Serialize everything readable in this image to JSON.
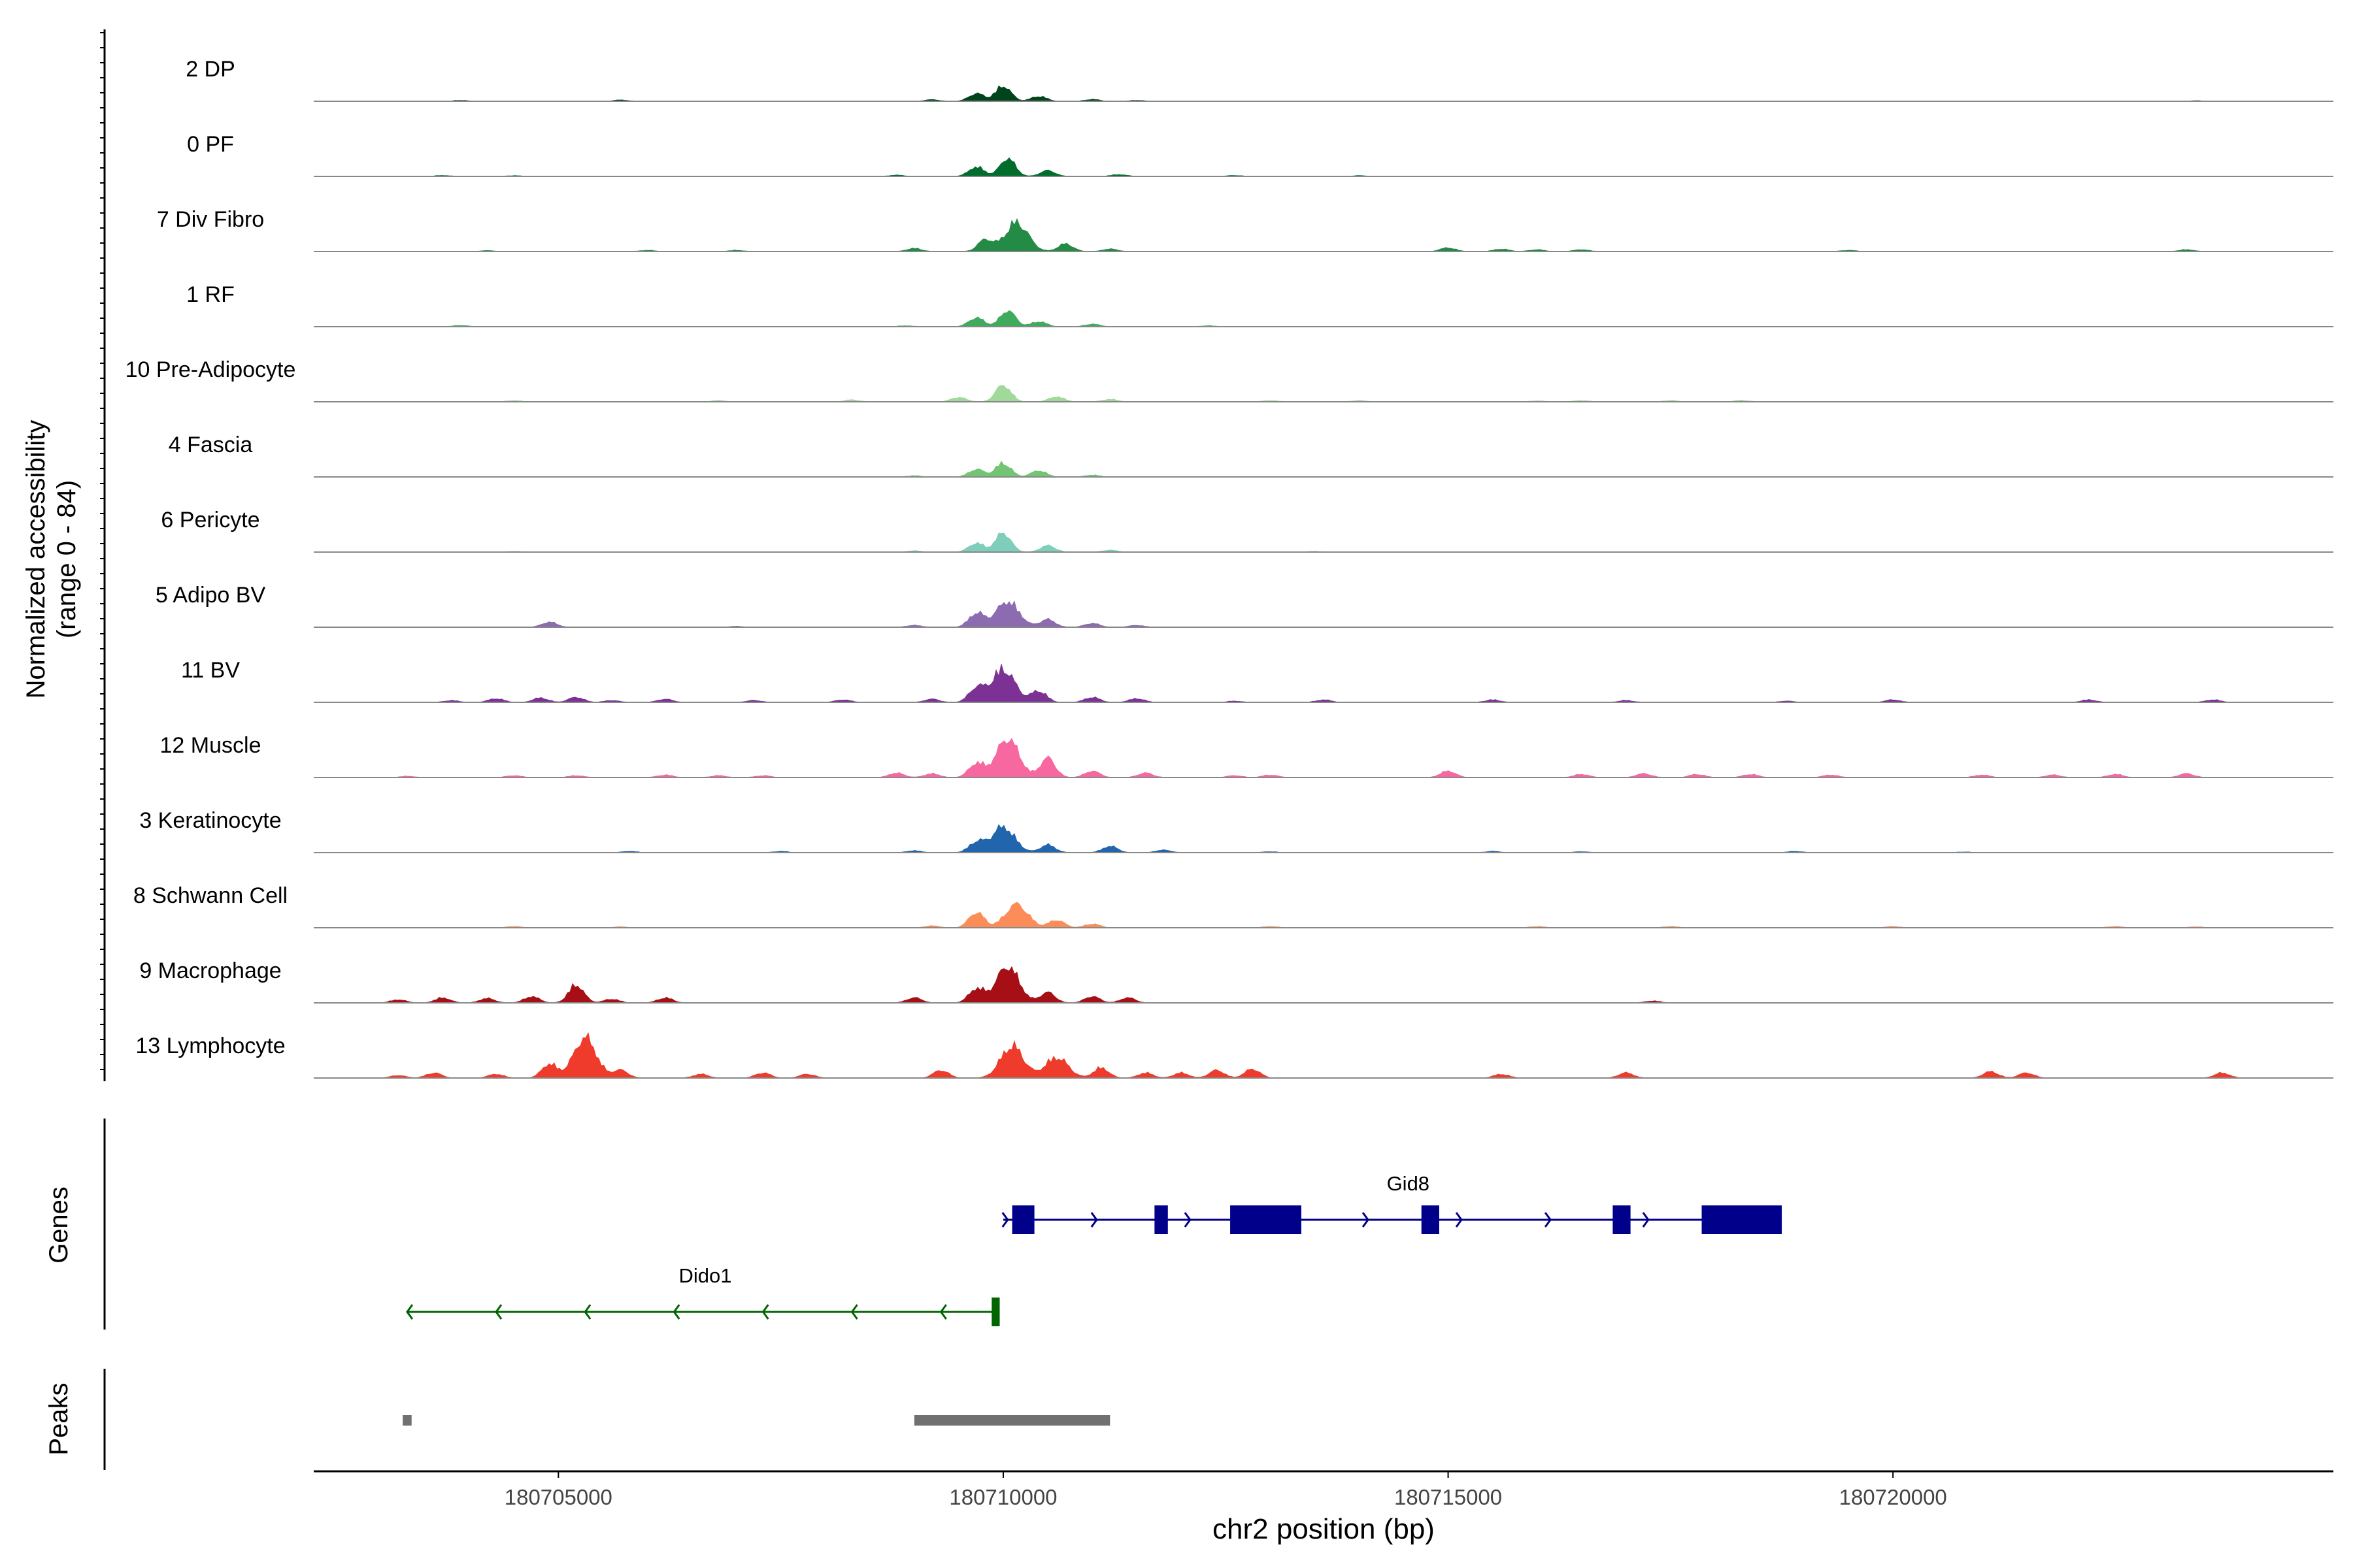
{
  "chart_data": {
    "type": "area",
    "title": "",
    "ylabel_line1": "Normalized accessibility",
    "ylabel_line2": "(range 0 - 84)",
    "y_range": [
      0,
      84
    ],
    "xlabel": "chr2 position (bp)",
    "xlim": [
      180702250,
      180724950
    ],
    "x_ticks": [
      180705000,
      180710000,
      180715000,
      180720000
    ],
    "x_tick_labels": [
      "180705000",
      "180710000",
      "180715000",
      "180720000"
    ],
    "tracks": [
      {
        "label": "2 DP",
        "color": "#00441b",
        "peaks": [
          [
            180710000,
            24
          ],
          [
            180709700,
            12
          ],
          [
            180710400,
            8
          ],
          [
            180711000,
            3
          ],
          [
            180705700,
            2
          ],
          [
            180703900,
            1.5
          ],
          [
            180709200,
            2.5
          ],
          [
            180711500,
            1.5
          ],
          [
            180723400,
            1
          ]
        ]
      },
      {
        "label": "0 PF",
        "color": "#006d2c",
        "peaks": [
          [
            180710050,
            28
          ],
          [
            180709700,
            15
          ],
          [
            180710500,
            9
          ],
          [
            180711300,
            3
          ],
          [
            180708800,
            2
          ],
          [
            180703700,
            1.5
          ],
          [
            180704500,
            1.2
          ],
          [
            180712600,
            1.5
          ],
          [
            180714000,
            1.2
          ]
        ]
      },
      {
        "label": "7 Div Fibro",
        "color": "#238b45",
        "peaks": [
          [
            180710150,
            45
          ],
          [
            180709800,
            18
          ],
          [
            180710700,
            12
          ],
          [
            180711200,
            4
          ],
          [
            180709000,
            5
          ],
          [
            180715000,
            6
          ],
          [
            180715600,
            4
          ],
          [
            180716000,
            3
          ],
          [
            180716500,
            3
          ],
          [
            180723300,
            3
          ],
          [
            180719500,
            2
          ],
          [
            180706000,
            2
          ],
          [
            180707000,
            2
          ],
          [
            180704200,
            1.5
          ]
        ]
      },
      {
        "label": "1 RF",
        "color": "#41ab5d",
        "peaks": [
          [
            180710050,
            25
          ],
          [
            180709700,
            14
          ],
          [
            180710400,
            8
          ],
          [
            180711000,
            4
          ],
          [
            180703900,
            2
          ],
          [
            180708900,
            1.5
          ],
          [
            180712300,
            1.5
          ]
        ]
      },
      {
        "label": "10 Pre-Adipocyte",
        "color": "#a1d99b",
        "peaks": [
          [
            180710000,
            26
          ],
          [
            180709500,
            7
          ],
          [
            180710600,
            8
          ],
          [
            180711200,
            4
          ],
          [
            180708300,
            3
          ],
          [
            180704500,
            2
          ],
          [
            180706800,
            2
          ],
          [
            180713000,
            2
          ],
          [
            180714000,
            2
          ],
          [
            180716500,
            2
          ],
          [
            180717500,
            2
          ],
          [
            180718300,
            2.5
          ],
          [
            180716000,
            1.5
          ]
        ]
      },
      {
        "label": "4 Fascia",
        "color": "#74c476",
        "peaks": [
          [
            180710000,
            22
          ],
          [
            180709700,
            12
          ],
          [
            180710400,
            10
          ],
          [
            180711000,
            3
          ],
          [
            180709000,
            2
          ]
        ]
      },
      {
        "label": "6 Pericyte",
        "color": "#7fcdbb",
        "peaks": [
          [
            180710000,
            30
          ],
          [
            180709700,
            14
          ],
          [
            180710500,
            10
          ],
          [
            180711200,
            3
          ],
          [
            180709000,
            2
          ],
          [
            180704500,
            1.2
          ],
          [
            180713500,
            1.2
          ]
        ]
      },
      {
        "label": "5 Adipo BV",
        "color": "#8c6bb1",
        "peaks": [
          [
            180710050,
            40
          ],
          [
            180709700,
            22
          ],
          [
            180710500,
            12
          ],
          [
            180711000,
            6
          ],
          [
            180704900,
            8
          ],
          [
            180709000,
            3
          ],
          [
            180711500,
            3
          ],
          [
            180707000,
            1.5
          ]
        ]
      },
      {
        "label": "11 BV",
        "color": "#7b3294",
        "peaks": [
          [
            180710000,
            52
          ],
          [
            180709700,
            22
          ],
          [
            180710400,
            18
          ],
          [
            180711000,
            8
          ],
          [
            180711500,
            6
          ],
          [
            180704300,
            6
          ],
          [
            180704800,
            7
          ],
          [
            180705200,
            8
          ],
          [
            180705600,
            3
          ],
          [
            180706200,
            5
          ],
          [
            180703800,
            3
          ],
          [
            180707200,
            3
          ],
          [
            180708200,
            4
          ],
          [
            180709200,
            5
          ],
          [
            180713600,
            4
          ],
          [
            180715500,
            4
          ],
          [
            180717000,
            3
          ],
          [
            180720000,
            4
          ],
          [
            180722200,
            4
          ],
          [
            180723600,
            4
          ],
          [
            180712600,
            2
          ],
          [
            180718800,
            2
          ]
        ]
      },
      {
        "label": "12 Muscle",
        "color": "#f768a1",
        "peaks": [
          [
            180710050,
            60
          ],
          [
            180709700,
            22
          ],
          [
            180710500,
            30
          ],
          [
            180711000,
            10
          ],
          [
            180711600,
            7
          ],
          [
            180708800,
            7
          ],
          [
            180709200,
            6
          ],
          [
            180715000,
            10
          ],
          [
            180716500,
            5
          ],
          [
            180717200,
            6
          ],
          [
            180717800,
            5
          ],
          [
            180718400,
            5
          ],
          [
            180719300,
            4
          ],
          [
            180721000,
            4
          ],
          [
            180721800,
            4
          ],
          [
            180722500,
            5
          ],
          [
            180723300,
            6
          ],
          [
            180713000,
            4
          ],
          [
            180706200,
            4
          ],
          [
            180704500,
            3
          ],
          [
            180705200,
            3
          ],
          [
            180707300,
            3
          ],
          [
            180712600,
            3
          ],
          [
            180706800,
            3
          ],
          [
            180703300,
            2
          ]
        ]
      },
      {
        "label": "3 Keratinocyte",
        "color": "#2166ac",
        "peaks": [
          [
            180710000,
            40
          ],
          [
            180709700,
            16
          ],
          [
            180710500,
            12
          ],
          [
            180711200,
            10
          ],
          [
            180711800,
            4
          ],
          [
            180705800,
            2
          ],
          [
            180707500,
            2
          ],
          [
            180709000,
            3
          ],
          [
            180715500,
            2
          ],
          [
            180718900,
            2
          ],
          [
            180713000,
            1.5
          ],
          [
            180716500,
            1.5
          ],
          [
            180720800,
            1.2
          ]
        ]
      },
      {
        "label": "8 Schwann Cell",
        "color": "#fc8d59",
        "peaks": [
          [
            180710150,
            36
          ],
          [
            180709700,
            24
          ],
          [
            180710600,
            12
          ],
          [
            180711000,
            6
          ],
          [
            180709200,
            3
          ],
          [
            180704500,
            2
          ],
          [
            180705700,
            1.5
          ],
          [
            180713000,
            2
          ],
          [
            180716000,
            2
          ],
          [
            180717500,
            2
          ],
          [
            180720000,
            2
          ],
          [
            180722500,
            2
          ],
          [
            180723400,
            1.5
          ]
        ]
      },
      {
        "label": "9 Macrophage",
        "color": "#a50f15",
        "peaks": [
          [
            180710050,
            56
          ],
          [
            180709700,
            22
          ],
          [
            180710500,
            16
          ],
          [
            180711000,
            10
          ],
          [
            180711400,
            8
          ],
          [
            180705200,
            28
          ],
          [
            180704700,
            10
          ],
          [
            180705600,
            6
          ],
          [
            180706200,
            8
          ],
          [
            180703700,
            8
          ],
          [
            180704200,
            7
          ],
          [
            180703200,
            5
          ],
          [
            180709000,
            8
          ],
          [
            180717300,
            3
          ]
        ]
      },
      {
        "label": "13 Lymphocyte",
        "color": "#ef3b2c",
        "peaks": [
          [
            180710100,
            50
          ],
          [
            180710600,
            32
          ],
          [
            180711100,
            16
          ],
          [
            180709300,
            12
          ],
          [
            180711600,
            8
          ],
          [
            180705300,
            62
          ],
          [
            180704900,
            22
          ],
          [
            180705700,
            12
          ],
          [
            180703600,
            8
          ],
          [
            180704300,
            6
          ],
          [
            180706600,
            6
          ],
          [
            180707300,
            8
          ],
          [
            180707800,
            6
          ],
          [
            180712400,
            12
          ],
          [
            180712800,
            14
          ],
          [
            180712000,
            8
          ],
          [
            180715600,
            6
          ],
          [
            180717000,
            8
          ],
          [
            180721100,
            10
          ],
          [
            180721500,
            8
          ],
          [
            180723700,
            8
          ],
          [
            180703200,
            4
          ]
        ]
      }
    ],
    "genes": [
      {
        "name": "Gid8",
        "strand": "+",
        "start": 180710000,
        "end": 180718700,
        "color": "#00008b",
        "exons": [
          [
            180710100,
            180710350
          ],
          [
            180711700,
            180711850
          ],
          [
            180712550,
            180713350
          ],
          [
            180714700,
            180714900
          ],
          [
            180716850,
            180717050
          ],
          [
            180717850,
            180718750
          ]
        ],
        "arrows": [
          180710050,
          180711050,
          180712100,
          180714100,
          180715150,
          180716150,
          180717250
        ]
      },
      {
        "name": "Dido1",
        "strand": "-",
        "start": 180703300,
        "end": 180709950,
        "color": "#006400",
        "exons": [
          [
            180709870,
            180709960
          ]
        ],
        "arrows": [
          180703300,
          180704300,
          180705300,
          180706300,
          180707300,
          180708300,
          180709300
        ]
      }
    ],
    "peaks_track": [
      [
        180703250,
        180703350
      ],
      [
        180709000,
        180711200
      ]
    ],
    "panel_labels": {
      "genes": "Genes",
      "peaks": "Peaks"
    }
  }
}
